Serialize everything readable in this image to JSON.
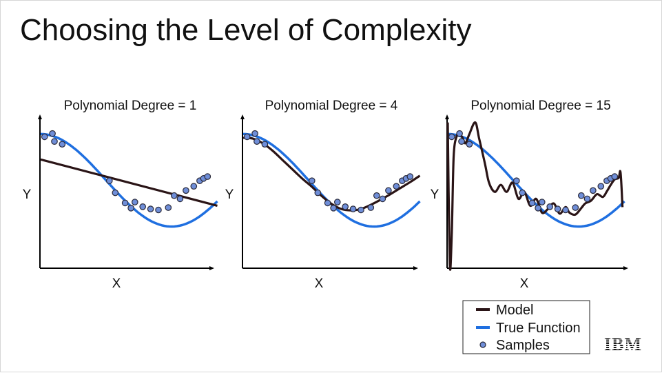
{
  "slide": {
    "title": "Choosing the Level of Complexity",
    "logo_text": "IBM"
  },
  "colors": {
    "model": "#2a1416",
    "true_function": "#1f6fe0",
    "sample_fill": "#6f8ed8",
    "sample_edge": "#2a2a3a",
    "axis": "#000000"
  },
  "legend": {
    "items": [
      {
        "label": "Model",
        "marker": "line",
        "color": "#2a1416"
      },
      {
        "label": "True Function",
        "marker": "line",
        "color": "#1f6fe0"
      },
      {
        "label": "Samples",
        "marker": "dot",
        "color": "#6f8ed8"
      }
    ]
  },
  "chart_data": [
    {
      "type": "line",
      "title": "Polynomial Degree = 1",
      "xlabel": "X",
      "ylabel": "Y",
      "xlim": [
        0,
        1
      ],
      "ylim": [
        -1.9,
        1.2
      ],
      "samples": {
        "x": [
          0.02,
          0.06,
          0.07,
          0.11,
          0.35,
          0.38,
          0.43,
          0.46,
          0.48,
          0.52,
          0.56,
          0.6,
          0.65,
          0.68,
          0.71,
          0.74,
          0.78,
          0.81,
          0.83,
          0.85
        ],
        "y": [
          0.94,
          1.01,
          0.84,
          0.78,
          -0.01,
          -0.27,
          -0.49,
          -0.6,
          -0.47,
          -0.57,
          -0.62,
          -0.64,
          -0.59,
          -0.33,
          -0.4,
          -0.22,
          -0.13,
          -0.01,
          0.04,
          0.08
        ]
      },
      "model": {
        "x": [
          0,
          0.9
        ],
        "y": [
          0.45,
          -0.55
        ]
      },
      "true_function_points": 70
    },
    {
      "type": "line",
      "title": "Polynomial Degree = 4",
      "xlabel": "X",
      "ylabel": "Y",
      "xlim": [
        0,
        1
      ],
      "ylim": [
        -1.9,
        1.2
      ],
      "samples": {
        "x": [
          0.02,
          0.06,
          0.07,
          0.11,
          0.35,
          0.38,
          0.43,
          0.46,
          0.48,
          0.52,
          0.56,
          0.6,
          0.65,
          0.68,
          0.71,
          0.74,
          0.78,
          0.81,
          0.83,
          0.85
        ],
        "y": [
          0.94,
          1.01,
          0.84,
          0.78,
          -0.01,
          -0.27,
          -0.49,
          -0.6,
          -0.47,
          -0.57,
          -0.62,
          -0.64,
          -0.59,
          -0.33,
          -0.4,
          -0.22,
          -0.13,
          -0.01,
          0.04,
          0.08
        ]
      },
      "model": {
        "x": [
          0,
          0.05,
          0.1,
          0.15,
          0.2,
          0.25,
          0.3,
          0.35,
          0.4,
          0.45,
          0.5,
          0.55,
          0.6,
          0.65,
          0.7,
          0.75,
          0.8,
          0.85,
          0.9
        ],
        "y": [
          0.92,
          0.9,
          0.8,
          0.64,
          0.44,
          0.24,
          0.04,
          -0.14,
          -0.34,
          -0.51,
          -0.62,
          -0.65,
          -0.62,
          -0.53,
          -0.42,
          -0.3,
          -0.17,
          -0.04,
          0.1
        ]
      },
      "true_function_points": 70
    },
    {
      "type": "line",
      "title": "Polynomial Degree = 15",
      "xlabel": "X",
      "ylabel": "Y",
      "xlim": [
        0,
        1
      ],
      "ylim": [
        -1.9,
        1.2
      ],
      "samples": {
        "x": [
          0.02,
          0.06,
          0.07,
          0.11,
          0.35,
          0.38,
          0.43,
          0.46,
          0.48,
          0.52,
          0.56,
          0.6,
          0.65,
          0.68,
          0.71,
          0.74,
          0.78,
          0.81,
          0.83,
          0.85
        ],
        "y": [
          0.94,
          1.01,
          0.84,
          0.78,
          -0.01,
          -0.27,
          -0.49,
          -0.6,
          -0.47,
          -0.57,
          -0.62,
          -0.64,
          -0.59,
          -0.33,
          -0.4,
          -0.22,
          -0.13,
          -0.01,
          0.04,
          0.08
        ]
      },
      "model": {
        "x": [
          0.0,
          0.01,
          0.02,
          0.03,
          0.045,
          0.06,
          0.075,
          0.09,
          0.11,
          0.14,
          0.16,
          0.19,
          0.21,
          0.24,
          0.27,
          0.3,
          0.33,
          0.36,
          0.39,
          0.42,
          0.45,
          0.48,
          0.51,
          0.54,
          0.57,
          0.6,
          0.62,
          0.65,
          0.68,
          0.7,
          0.73,
          0.76,
          0.79,
          0.81,
          0.83,
          0.85,
          0.87,
          0.88,
          0.89
        ],
        "y": [
          1.25,
          -1.8,
          -1.2,
          0.5,
          0.95,
          1.0,
          0.92,
          0.8,
          1.0,
          1.25,
          0.9,
          0.35,
          -0.05,
          -0.25,
          -0.1,
          -0.25,
          -0.05,
          -0.4,
          -0.25,
          -0.55,
          -0.4,
          -0.7,
          -0.62,
          -0.5,
          -0.72,
          -0.58,
          -0.7,
          -0.74,
          -0.6,
          -0.5,
          -0.44,
          -0.3,
          -0.36,
          -0.24,
          -0.1,
          0.02,
          0.05,
          0.17,
          -0.58
        ]
      },
      "true_function_points": 70
    }
  ]
}
